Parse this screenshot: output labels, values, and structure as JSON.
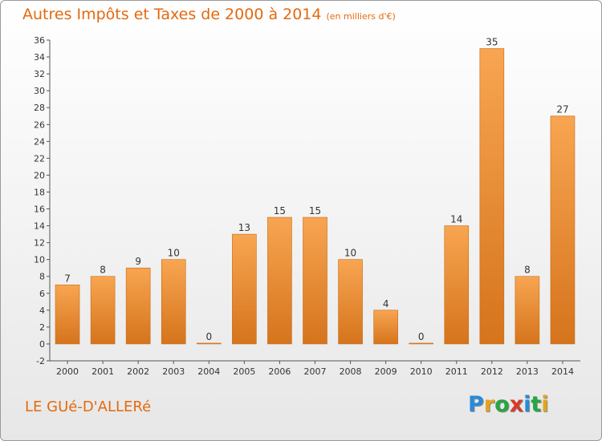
{
  "title": "Autres Impôts et Taxes de 2000 à 2014",
  "subtitle": "(en milliers d'€)",
  "commune": "LE GUé-D'ALLERé",
  "logo": {
    "letters": [
      "P",
      "r",
      "o",
      "x",
      "i",
      "t",
      "i"
    ]
  },
  "colors": {
    "title": "#e4690e",
    "bar_light": "#f7a350",
    "bar_dark": "#d8761e"
  },
  "chart_data": {
    "type": "bar",
    "categories": [
      "2000",
      "2001",
      "2002",
      "2003",
      "2004",
      "2005",
      "2006",
      "2007",
      "2008",
      "2009",
      "2010",
      "2011",
      "2012",
      "2013",
      "2014"
    ],
    "values": [
      7,
      8,
      9,
      10,
      0,
      13,
      15,
      15,
      10,
      4,
      0,
      14,
      35,
      8,
      27
    ],
    "title": "Autres Impôts et Taxes de 2000 à 2014",
    "subtitle": "(en milliers d'€)",
    "ylim": [
      -2,
      36
    ],
    "yticks": [
      -2,
      0,
      2,
      4,
      6,
      8,
      10,
      12,
      14,
      16,
      18,
      20,
      22,
      24,
      26,
      28,
      30,
      32,
      34,
      36
    ],
    "grid": false,
    "legend": "none"
  }
}
